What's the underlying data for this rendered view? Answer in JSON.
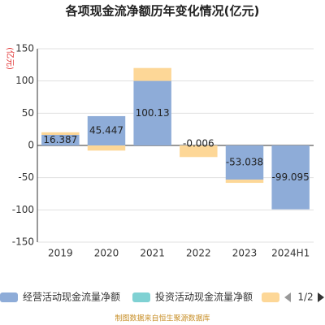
{
  "chart_data": {
    "type": "bar",
    "title": "各项现金流净额历年变化情况(亿元)",
    "y_label": "(亿元)",
    "categories": [
      "2019",
      "2020",
      "2021",
      "2022",
      "2023",
      "2024H1"
    ],
    "series": [
      {
        "name": "经营活动现金流量净额",
        "color": "#8eacd8",
        "values": [
          16.387,
          45.447,
          100.13,
          -0.006,
          -53.038,
          -99.095
        ],
        "labeled": true
      },
      {
        "name": "投资活动现金流量净额",
        "color": "#7fd1d3",
        "values": [
          null,
          null,
          null,
          null,
          null,
          null
        ]
      },
      {
        "color": "#fdd797",
        "values": [
          4,
          -8,
          20,
          -18,
          -5,
          null
        ]
      }
    ],
    "ylim": [
      -150,
      150
    ],
    "yticks": [
      -150,
      -100,
      -50,
      0,
      50,
      100,
      150
    ],
    "grid": true,
    "stacked": true,
    "legend_page": "1/2",
    "footer": "制图数据来自恒生聚源数据库"
  }
}
